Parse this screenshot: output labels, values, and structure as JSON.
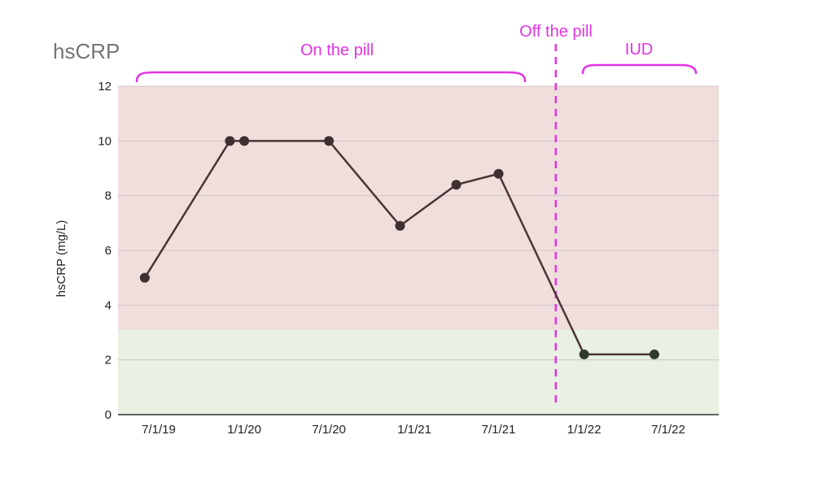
{
  "chart_data": {
    "type": "line",
    "title": "hsCRP",
    "ylabel": "hsCRP (mg/L)",
    "xlabel": "",
    "ylim": [
      0,
      12
    ],
    "yticks": [
      "0",
      "2",
      "4",
      "6",
      "8",
      "10",
      "12"
    ],
    "xtick_labels": [
      "7/1/19",
      "1/1/20",
      "7/1/20",
      "1/1/21",
      "7/1/21",
      "1/1/22",
      "7/1/22"
    ],
    "x_dates": [
      "2019-06-01",
      "2019-12-01",
      "2020-01-01",
      "2020-07-01",
      "2020-12-01",
      "2021-04-01",
      "2021-07-01",
      "2022-01-01",
      "2022-06-01"
    ],
    "values": [
      5.0,
      10.0,
      10.0,
      10.0,
      6.9,
      8.4,
      8.8,
      2.2,
      2.2
    ],
    "grid": true,
    "colors": {
      "line": "#4a3535",
      "marker": "#3f2f2f",
      "marker_low": "#2f3a2f",
      "high_band": "#f0dedd",
      "low_band": "#e8f1e2",
      "annotation": "#e233e2"
    },
    "bands": [
      {
        "from": 0,
        "to": 3.1,
        "color_key": "low_band"
      },
      {
        "from": 3.1,
        "to": 12,
        "color_key": "high_band"
      }
    ],
    "annotations": {
      "on_pill": "On the pill",
      "off_pill": "Off the pill",
      "iud": "IUD"
    },
    "off_pill_date": "2021-11-01"
  }
}
